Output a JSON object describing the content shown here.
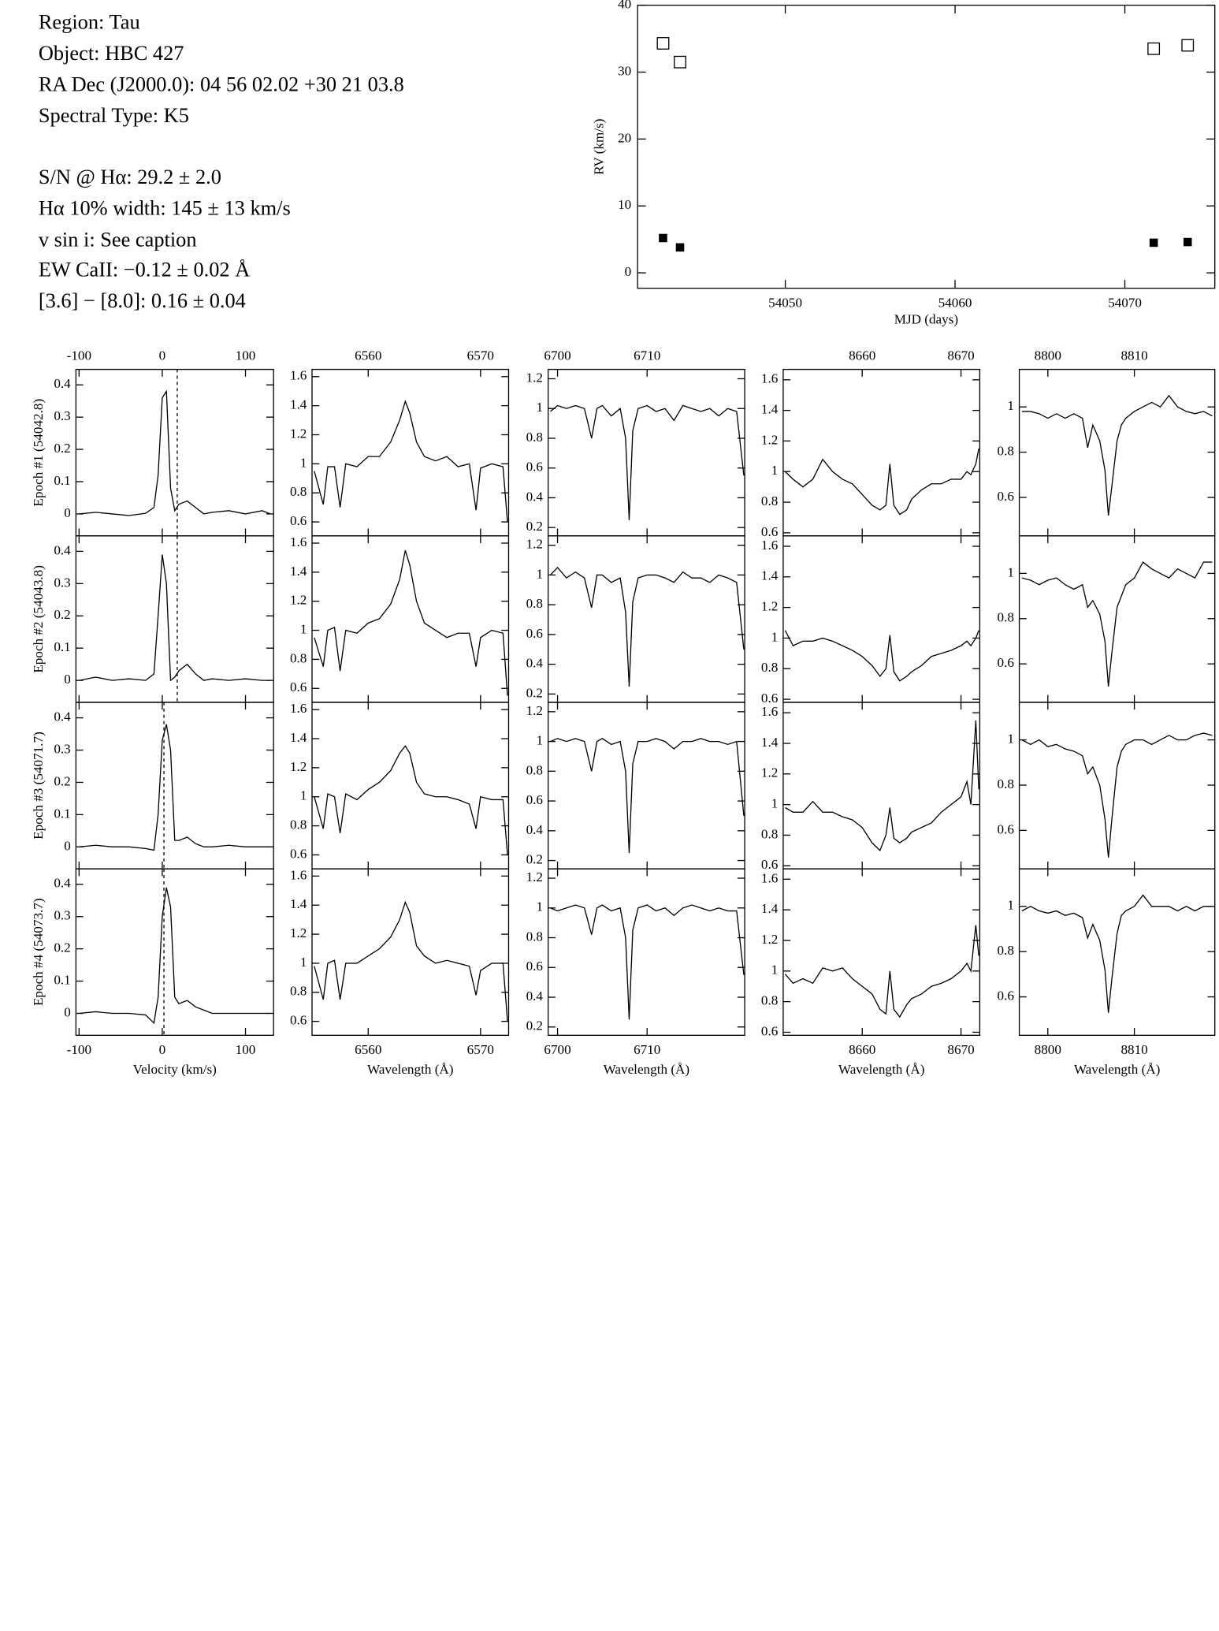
{
  "info": [
    "Region: Tau",
    "Object: HBC 427",
    "RA Dec (J2000.0): 04 56 02.02 +30 21 03.8",
    "Spectral Type: K5",
    "S/N @ Hα: 29.2 ± 2.0",
    "Hα 10% width: 145 ± 13 km/s",
    "v sin i: See caption",
    "EW CaII: −0.12 ± 0.02 Å",
    "[3.6] − [8.0]: 0.16 ± 0.04"
  ],
  "chart_data": [
    {
      "type": "scatter",
      "xlabel": "MJD (days)",
      "ylabel": "RV (km/s)",
      "xlim": [
        54041.3,
        54075.3
      ],
      "xticks": [
        54050,
        54060,
        54070
      ],
      "ylim": [
        -2.3,
        40
      ],
      "yticks": [
        0,
        10,
        20,
        30,
        40
      ],
      "series": [
        {
          "marker": "open-square",
          "color": "#000000",
          "x": [
            54042.8,
            54043.8,
            54071.7,
            54073.7
          ],
          "values": [
            34.3,
            31.5,
            33.5,
            34.0
          ]
        },
        {
          "marker": "filled-square",
          "color": "#000000",
          "x": [
            54042.8,
            54043.8,
            54071.7,
            54073.7
          ],
          "values": [
            5.2,
            3.8,
            4.5,
            4.6
          ]
        }
      ]
    },
    {
      "type": "line",
      "panels": "stacked",
      "color": "#000000",
      "xlabel": "Velocity (km/s)",
      "xlim": [
        -103.75,
        133.75
      ],
      "xticks": [
        -100,
        0,
        100
      ],
      "ylim": [
        -0.068,
        0.448
      ],
      "yticks": [
        0,
        0.1,
        0.2,
        0.3,
        0.4
      ],
      "x": [
        -100,
        -80,
        -60,
        -40,
        -20,
        -10,
        -5,
        0,
        5,
        10,
        15,
        20,
        30,
        40,
        50,
        60,
        80,
        100,
        120,
        130
      ],
      "series": [
        {
          "name": "Epoch #1 (54042.8)",
          "vline": 18,
          "values": [
            0,
            0.005,
            0,
            -0.005,
            0.002,
            0.02,
            0.12,
            0.36,
            0.38,
            0.08,
            0.01,
            0.03,
            0.04,
            0.02,
            0,
            0.005,
            0.01,
            0,
            0.01,
            0
          ]
        },
        {
          "name": "Epoch #2 (54043.8)",
          "vline": 18,
          "values": [
            0,
            0.01,
            0,
            0.005,
            0,
            0.02,
            0.2,
            0.39,
            0.3,
            0,
            0.01,
            0.03,
            0.05,
            0.02,
            0,
            0.005,
            0,
            0.005,
            0,
            0
          ]
        },
        {
          "name": "Epoch #3 (54071.7)",
          "vline": 2,
          "values": [
            0,
            0.005,
            0,
            0,
            -0.005,
            -0.01,
            0.1,
            0.33,
            0.38,
            0.3,
            0.02,
            0.02,
            0.03,
            0.01,
            0,
            0,
            0.005,
            0,
            0,
            0
          ]
        },
        {
          "name": "Epoch #4 (54073.7)",
          "vline": 2,
          "values": [
            0,
            0.005,
            0,
            0,
            -0.005,
            -0.03,
            0.05,
            0.3,
            0.39,
            0.33,
            0.05,
            0.03,
            0.04,
            0.02,
            0.01,
            0,
            0,
            0,
            0,
            0
          ]
        }
      ]
    },
    {
      "type": "line",
      "panels": "stacked",
      "color": "#000000",
      "xlabel": "Wavelength (Å)",
      "xlim": [
        6555.0,
        6572.5
      ],
      "xticks": [
        6560,
        6570
      ],
      "ylim": [
        0.504,
        1.65
      ],
      "yticks": [
        0.6,
        0.8,
        1,
        1.2,
        1.4,
        1.6
      ],
      "x": [
        6555.2,
        6556.0,
        6556.4,
        6557.0,
        6557.5,
        6558.0,
        6559.0,
        6560.0,
        6561.0,
        6562.0,
        6562.8,
        6563.3,
        6563.7,
        6564.3,
        6565.0,
        6566.0,
        6567.0,
        6568.0,
        6569.0,
        6569.6,
        6570.0,
        6571.0,
        6572.0,
        6572.4
      ],
      "series": [
        {
          "values": [
            0.95,
            0.72,
            0.98,
            0.98,
            0.7,
            1.0,
            0.98,
            1.05,
            1.05,
            1.15,
            1.3,
            1.43,
            1.35,
            1.15,
            1.05,
            1.02,
            1.05,
            0.98,
            1.0,
            0.68,
            0.97,
            1.0,
            0.98,
            0.6
          ]
        },
        {
          "values": [
            0.95,
            0.75,
            1.0,
            1.02,
            0.72,
            1.0,
            0.98,
            1.05,
            1.08,
            1.18,
            1.35,
            1.55,
            1.45,
            1.2,
            1.05,
            1.0,
            0.95,
            0.98,
            0.98,
            0.75,
            0.95,
            1.0,
            0.98,
            0.55
          ]
        },
        {
          "values": [
            1.0,
            0.78,
            1.02,
            1.0,
            0.75,
            1.02,
            0.98,
            1.05,
            1.1,
            1.18,
            1.3,
            1.35,
            1.3,
            1.1,
            1.02,
            1.0,
            1.0,
            0.98,
            0.95,
            0.78,
            1.0,
            0.98,
            0.98,
            0.6
          ]
        },
        {
          "values": [
            0.98,
            0.75,
            1.0,
            1.02,
            0.75,
            1.0,
            1.0,
            1.05,
            1.1,
            1.18,
            1.3,
            1.42,
            1.35,
            1.12,
            1.05,
            1.0,
            1.02,
            1.0,
            0.98,
            0.78,
            0.95,
            1.0,
            1.0,
            0.6
          ]
        }
      ]
    },
    {
      "type": "line",
      "panels": "stacked",
      "color": "#000000",
      "xlabel": "Wavelength (Å)",
      "xlim": [
        6698.95,
        6720.9
      ],
      "xticks": [
        6700,
        6710
      ],
      "ylim": [
        0.144,
        1.263
      ],
      "yticks": [
        0.2,
        0.4,
        0.6,
        0.8,
        1,
        1.2
      ],
      "x": [
        6699.2,
        6700,
        6701,
        6702,
        6703,
        6703.8,
        6704.4,
        6705,
        6706,
        6707,
        6707.6,
        6708,
        6708.4,
        6709,
        6710,
        6711,
        6712,
        6713,
        6714,
        6715,
        6716,
        6717,
        6718,
        6719,
        6720,
        6720.8
      ],
      "series": [
        {
          "values": [
            0.98,
            1.02,
            1.0,
            1.02,
            1.0,
            0.8,
            1.0,
            1.02,
            0.95,
            1.0,
            0.8,
            0.25,
            0.85,
            1.0,
            1.02,
            0.98,
            1.0,
            0.92,
            1.02,
            1.0,
            0.98,
            1.0,
            0.95,
            1.0,
            0.98,
            0.55
          ]
        },
        {
          "values": [
            1.0,
            1.05,
            0.98,
            1.02,
            0.98,
            0.78,
            1.0,
            1.0,
            0.95,
            0.98,
            0.75,
            0.25,
            0.82,
            0.98,
            1.0,
            1.0,
            0.98,
            0.95,
            1.02,
            0.98,
            0.98,
            0.95,
            1.0,
            0.98,
            0.95,
            0.5
          ]
        },
        {
          "values": [
            1.0,
            1.02,
            1.0,
            1.02,
            1.0,
            0.8,
            1.0,
            1.02,
            0.98,
            1.0,
            0.8,
            0.25,
            0.85,
            1.0,
            1.0,
            1.02,
            1.0,
            0.95,
            1.0,
            1.0,
            1.02,
            1.0,
            1.0,
            0.98,
            1.0,
            0.5
          ]
        },
        {
          "values": [
            1.0,
            0.98,
            1.0,
            1.02,
            1.0,
            0.82,
            1.0,
            1.02,
            0.98,
            1.0,
            0.8,
            0.25,
            0.85,
            1.0,
            1.02,
            0.98,
            1.0,
            0.95,
            1.0,
            1.02,
            1.0,
            0.98,
            1.0,
            0.98,
            0.98,
            0.55
          ]
        }
      ]
    },
    {
      "type": "line",
      "panels": "stacked",
      "color": "#000000",
      "xlabel": "Wavelength (Å)",
      "xlim": [
        8652.0,
        8671.9
      ],
      "xticks": [
        8660,
        8670
      ],
      "ylim": [
        0.58,
        1.668
      ],
      "yticks": [
        0.6,
        0.8,
        1,
        1.2,
        1.4,
        1.6
      ],
      "x": [
        8652.2,
        8653,
        8654,
        8655,
        8656,
        8657,
        8658,
        8659,
        8660,
        8661,
        8661.8,
        8662.4,
        8662.8,
        8663.2,
        8663.8,
        8664.5,
        8665,
        8666,
        8667,
        8668,
        8669,
        8670,
        8670.6,
        8671,
        8671.5,
        8671.8
      ],
      "series": [
        {
          "values": [
            1.0,
            0.95,
            0.9,
            0.95,
            1.08,
            1.0,
            0.95,
            0.92,
            0.85,
            0.78,
            0.75,
            0.78,
            1.05,
            0.78,
            0.72,
            0.75,
            0.82,
            0.88,
            0.92,
            0.92,
            0.95,
            0.95,
            1.0,
            0.98,
            1.05,
            1.15
          ]
        },
        {
          "values": [
            1.05,
            0.95,
            0.98,
            0.98,
            1.0,
            0.98,
            0.95,
            0.92,
            0.88,
            0.82,
            0.75,
            0.8,
            1.02,
            0.78,
            0.72,
            0.75,
            0.78,
            0.82,
            0.88,
            0.9,
            0.92,
            0.95,
            0.98,
            0.95,
            1.0,
            1.05
          ]
        },
        {
          "values": [
            0.98,
            0.95,
            0.95,
            1.02,
            0.95,
            0.95,
            0.92,
            0.9,
            0.85,
            0.75,
            0.7,
            0.8,
            0.98,
            0.78,
            0.75,
            0.78,
            0.82,
            0.85,
            0.88,
            0.95,
            1.0,
            1.05,
            1.15,
            1.0,
            1.55,
            1.1
          ]
        },
        {
          "values": [
            0.98,
            0.92,
            0.95,
            0.92,
            1.02,
            1.0,
            1.02,
            0.95,
            0.9,
            0.85,
            0.75,
            0.72,
            1.0,
            0.75,
            0.7,
            0.78,
            0.82,
            0.85,
            0.9,
            0.92,
            0.95,
            1.0,
            1.05,
            1.0,
            1.3,
            1.1
          ]
        }
      ]
    },
    {
      "type": "line",
      "panels": "stacked",
      "color": "#000000",
      "xlabel": "Wavelength (Å)",
      "xlim": [
        8796.7,
        8819.3
      ],
      "xticks": [
        8800,
        8810
      ],
      "ylim": [
        0.43,
        1.166
      ],
      "yticks": [
        0.6,
        0.8,
        1
      ],
      "x": [
        8797,
        8798,
        8799,
        8800,
        8801,
        8802,
        8803,
        8804,
        8804.6,
        8805.2,
        8806,
        8806.6,
        8807,
        8807.4,
        8808,
        8808.5,
        8809,
        8810,
        8811,
        8812,
        8813,
        8814,
        8815,
        8816,
        8817,
        8818,
        8819
      ],
      "series": [
        {
          "values": [
            0.98,
            0.98,
            0.97,
            0.95,
            0.97,
            0.95,
            0.97,
            0.95,
            0.82,
            0.92,
            0.85,
            0.72,
            0.52,
            0.65,
            0.85,
            0.92,
            0.95,
            0.98,
            1.0,
            1.02,
            1.0,
            1.05,
            1.0,
            0.98,
            0.97,
            0.98,
            0.96
          ]
        },
        {
          "values": [
            0.98,
            0.97,
            0.95,
            0.97,
            0.98,
            0.95,
            0.93,
            0.95,
            0.85,
            0.88,
            0.82,
            0.7,
            0.5,
            0.65,
            0.85,
            0.9,
            0.95,
            0.98,
            1.05,
            1.02,
            1.0,
            0.98,
            1.02,
            1.0,
            0.98,
            1.05,
            1.05
          ]
        },
        {
          "values": [
            1.0,
            0.98,
            1.0,
            0.97,
            0.98,
            0.96,
            0.95,
            0.93,
            0.85,
            0.88,
            0.8,
            0.65,
            0.48,
            0.65,
            0.88,
            0.95,
            0.98,
            1.0,
            1.0,
            0.98,
            1.0,
            1.02,
            1.0,
            1.0,
            1.02,
            1.03,
            1.02
          ]
        },
        {
          "values": [
            0.98,
            1.0,
            0.98,
            0.97,
            0.98,
            0.96,
            0.97,
            0.95,
            0.86,
            0.92,
            0.85,
            0.72,
            0.53,
            0.68,
            0.88,
            0.96,
            0.98,
            1.0,
            1.05,
            1.0,
            1.0,
            1.0,
            0.98,
            1.0,
            0.98,
            1.0,
            1.0
          ]
        }
      ]
    }
  ]
}
